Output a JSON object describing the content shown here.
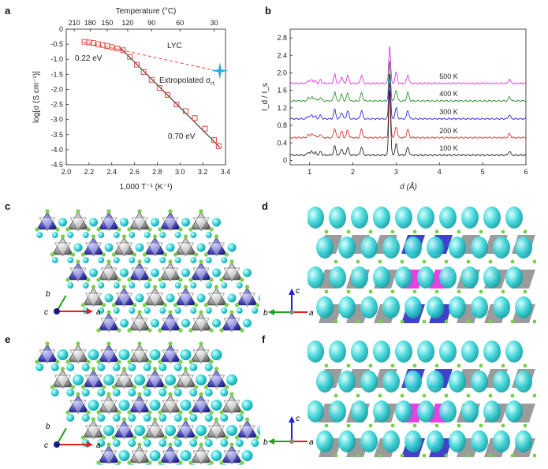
{
  "panels": {
    "a": "a",
    "b": "b",
    "c": "c",
    "d": "d",
    "e": "e",
    "f": "f"
  },
  "panel_a": {
    "label_lyc": "LYC",
    "label_022": "0.22 eV",
    "label_070": "0.70 eV",
    "label_extrap": "Extropolated σ",
    "label_extrap_sub": "rt"
  },
  "panel_b": {
    "temp_labels": [
      "500 K",
      "400 K",
      "300 K",
      "200 K",
      "100 K"
    ]
  },
  "axis_glyphs": {
    "c_a": "a",
    "c_b": "b",
    "c_c": "c",
    "d_a": "a",
    "d_b": "b",
    "d_c": "c",
    "e_a": "a",
    "e_b": "b",
    "e_c": "c",
    "f_a": "a",
    "f_b": "b",
    "f_c": "c"
  },
  "chart_data": [
    {
      "type": "scatter",
      "title": "",
      "xlabel": "1,000 T⁻¹ (K⁻¹)",
      "ylabel": "log[σ (S cm⁻¹)]",
      "top_xlabel": "Temperature (°C)",
      "xlim": [
        2.0,
        3.4
      ],
      "ylim": [
        -4.5,
        0
      ],
      "xticks": [
        "2.0",
        "2.2",
        "2.4",
        "2.6",
        "2.8",
        "3.0",
        "3.2",
        "3.4"
      ],
      "yticks": [
        "0",
        "-0.5",
        "-1.0",
        "-1.5",
        "-2.0",
        "-2.5",
        "-3.0",
        "-3.5",
        "-4.0",
        "-4.5"
      ],
      "top_ticks": [
        "210",
        "180",
        "150",
        "120",
        "90",
        "60",
        "30"
      ],
      "top_tick_positions": [
        2.07,
        2.21,
        2.36,
        2.54,
        2.75,
        3.0,
        3.3
      ],
      "series": [
        {
          "color": "#e8473b",
          "marker": "square-open",
          "x": [
            2.16,
            2.2,
            2.24,
            2.28,
            2.32,
            2.36,
            2.4,
            2.45,
            2.5,
            2.56,
            2.62,
            2.68,
            2.75,
            2.82,
            2.89,
            2.97,
            3.05,
            3.13,
            3.22,
            3.3,
            3.34
          ],
          "y": [
            -0.42,
            -0.44,
            -0.46,
            -0.5,
            -0.53,
            -0.56,
            -0.6,
            -0.64,
            -0.7,
            -0.92,
            -1.18,
            -1.42,
            -1.68,
            -1.95,
            -2.18,
            -2.5,
            -2.72,
            -2.95,
            -3.3,
            -3.68,
            -3.88
          ]
        }
      ],
      "fit_lines": [
        {
          "color": "#e8473b",
          "style": "dashed",
          "x": [
            2.15,
            3.32
          ],
          "y": [
            -0.42,
            -1.38
          ]
        },
        {
          "color": "#111111",
          "style": "solid",
          "x": [
            2.47,
            3.35
          ],
          "y": [
            -0.6,
            -3.92
          ]
        }
      ],
      "extrapolated_point": {
        "x": 3.35,
        "y": -1.38,
        "color": "#2fa8e8"
      }
    },
    {
      "type": "line",
      "title": "",
      "xlabel": "d (Å)",
      "ylabel": "I_d / I_s",
      "xlim": [
        0.55,
        6
      ],
      "ylim": [
        -0.1,
        3.0
      ],
      "xticks": [
        "1",
        "2",
        "3",
        "4",
        "5",
        "6"
      ],
      "yticks": [
        "0",
        "0.4",
        "0.8",
        "1.2",
        "1.6",
        "2.0",
        "2.4",
        "2.8"
      ],
      "series": [
        {
          "name": "500 K",
          "color": "#e020e0",
          "offset": 1.76
        },
        {
          "name": "400 K",
          "color": "#1a8a1a",
          "offset": 1.36
        },
        {
          "name": "300 K",
          "color": "#1a1ae0",
          "offset": 0.95
        },
        {
          "name": "200 K",
          "color": "#e02020",
          "offset": 0.52
        },
        {
          "name": "100 K",
          "color": "#111111",
          "offset": 0.12
        }
      ],
      "main_peak": {
        "x": 2.85,
        "heights": [
          0.85,
          0.9,
          1.05,
          1.25,
          1.5
        ]
      },
      "peaks": [
        {
          "x": 0.97,
          "h": 0.07
        },
        {
          "x": 1.05,
          "h": 0.09
        },
        {
          "x": 1.13,
          "h": 0.06
        },
        {
          "x": 1.25,
          "h": 0.08
        },
        {
          "x": 1.58,
          "h": 0.21
        },
        {
          "x": 1.74,
          "h": 0.15
        },
        {
          "x": 1.88,
          "h": 0.18
        },
        {
          "x": 2.2,
          "h": 0.19
        },
        {
          "x": 3.0,
          "h": 0.25
        },
        {
          "x": 3.27,
          "h": 0.19
        },
        {
          "x": 5.62,
          "h": 0.09
        }
      ]
    }
  ]
}
